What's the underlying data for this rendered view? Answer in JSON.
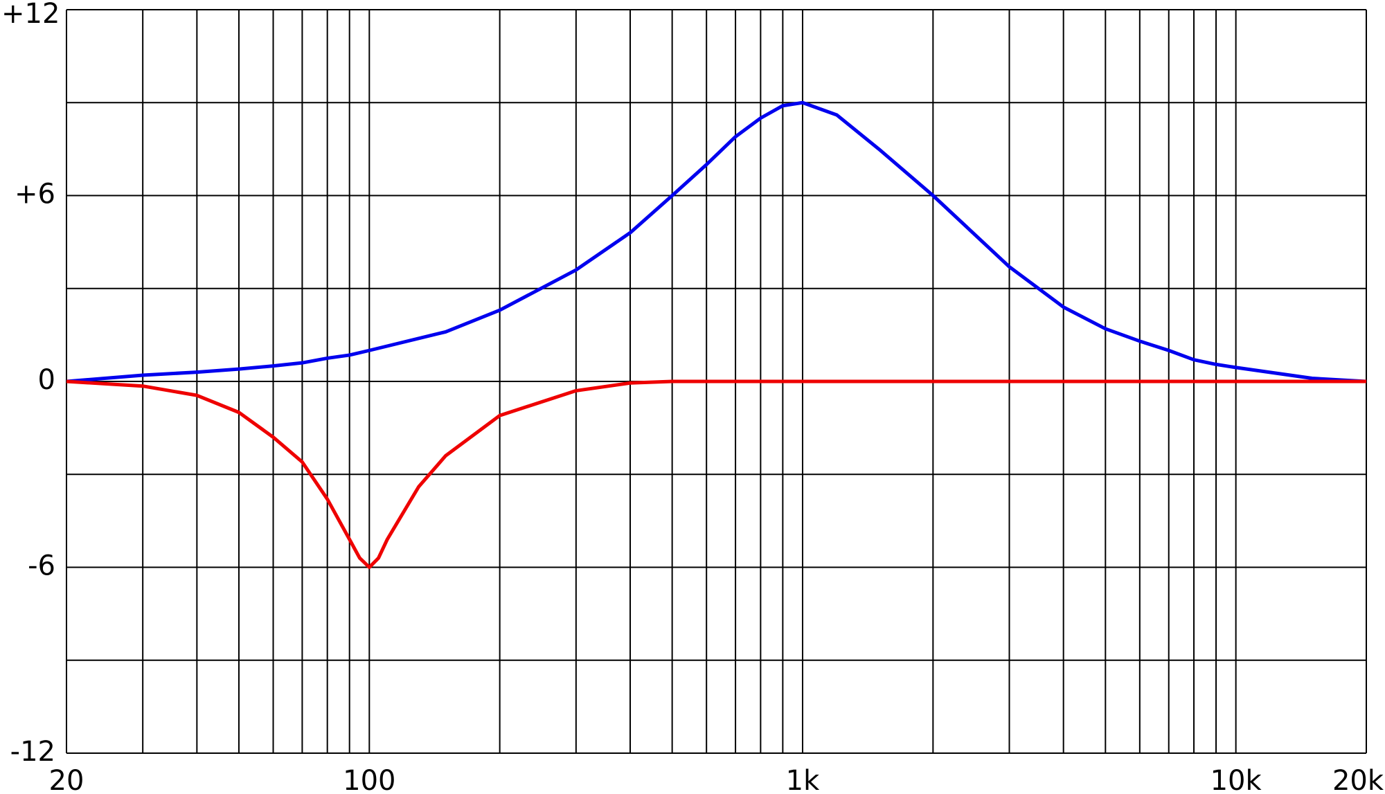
{
  "chart_data": {
    "type": "line",
    "xscale": "log",
    "grid": true,
    "xlim": [
      20,
      20000
    ],
    "ylim": [
      -12,
      12
    ],
    "xticks": [
      20,
      100,
      {
        "value": 1000,
        "label": "1k"
      },
      {
        "value": 10000,
        "label": "10k"
      },
      {
        "value": 20000,
        "label": "20k"
      }
    ],
    "xgrid": [
      30,
      40,
      50,
      60,
      70,
      80,
      90,
      200,
      300,
      400,
      500,
      600,
      700,
      800,
      900,
      2000,
      3000,
      4000,
      5000,
      6000,
      7000,
      8000,
      9000
    ],
    "yticks": [
      {
        "value": 12,
        "label": "+12"
      },
      {
        "value": 6,
        "label": "+6"
      },
      0,
      -6,
      -12
    ],
    "ygrid": [
      9,
      3,
      -3,
      -9
    ],
    "series": [
      {
        "color": "#0000ee",
        "x": [
          20,
          30,
          40,
          50,
          60,
          70,
          80,
          90,
          100,
          150,
          200,
          300,
          400,
          500,
          600,
          700,
          800,
          900,
          1000,
          1200,
          1500,
          2000,
          3000,
          4000,
          5000,
          6000,
          7000,
          8000,
          9000,
          10000,
          15000,
          20000
        ],
        "values": [
          0,
          0.2,
          0.3,
          0.4,
          0.5,
          0.6,
          0.75,
          0.85,
          1.0,
          1.6,
          2.3,
          3.6,
          4.8,
          6,
          7,
          7.9,
          8.5,
          8.9,
          9,
          8.6,
          7.5,
          6,
          3.7,
          2.4,
          1.7,
          1.3,
          1.0,
          0.7,
          0.55,
          0.45,
          0.1,
          0
        ]
      },
      {
        "color": "#ee0000",
        "x": [
          20,
          30,
          40,
          50,
          60,
          70,
          80,
          90,
          95,
          100,
          105,
          110,
          130,
          150,
          200,
          300,
          400,
          500,
          1000,
          20000
        ],
        "values": [
          0,
          -0.15,
          -0.45,
          -1.0,
          -1.8,
          -2.6,
          -3.8,
          -5.1,
          -5.7,
          -6,
          -5.7,
          -5.1,
          -3.4,
          -2.4,
          -1.1,
          -0.3,
          -0.05,
          0,
          0,
          0
        ]
      }
    ]
  }
}
